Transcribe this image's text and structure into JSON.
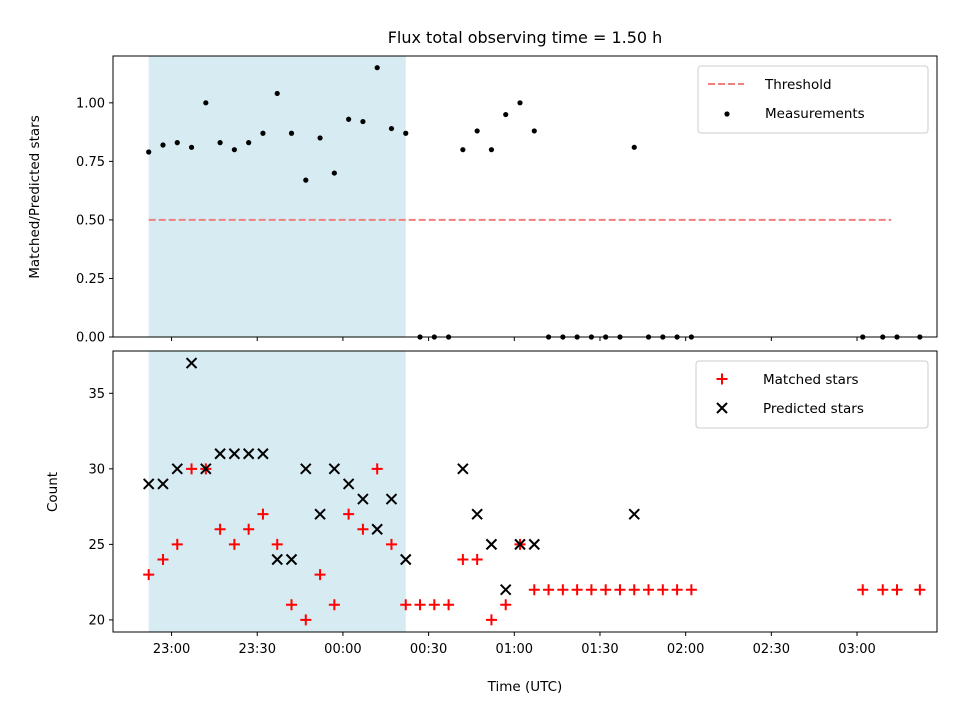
{
  "chart_data": [
    {
      "type": "scatter",
      "title": "Flux total observing time = 1.50 h",
      "xlabel": "",
      "ylabel": "Matched/Predicted stars",
      "ylim": [
        0.0,
        1.2
      ],
      "yticks": [
        0.0,
        0.25,
        0.5,
        0.75,
        1.0
      ],
      "ytick_labels": [
        "0.00",
        "0.25",
        "0.50",
        "0.75",
        "1.00"
      ],
      "shaded_region": {
        "x_start": -8,
        "x_end": 82,
        "color": "#add8e6"
      },
      "legend": {
        "placement": "top-right",
        "entries": [
          "Threshold",
          "Measurements"
        ]
      },
      "series": [
        {
          "name": "Threshold",
          "style": "dashed-line",
          "color": "#f08080",
          "x": [
            -8,
            252
          ],
          "y": [
            0.5,
            0.5
          ]
        },
        {
          "name": "Measurements",
          "style": "dot",
          "color": "#000000",
          "x": [
            -8,
            -3,
            2,
            7,
            12,
            17,
            22,
            27,
            32,
            37,
            42,
            47,
            52,
            57,
            62,
            67,
            72,
            77,
            82,
            87,
            92,
            97,
            102,
            107,
            112,
            117,
            122,
            127,
            132,
            137,
            142,
            147,
            152,
            157,
            162,
            167,
            172,
            177,
            182,
            242,
            249,
            254,
            262
          ],
          "y": [
            0.79,
            0.82,
            0.83,
            0.81,
            1.0,
            0.83,
            0.8,
            0.83,
            0.87,
            1.04,
            0.87,
            0.67,
            0.85,
            0.7,
            0.93,
            0.92,
            1.15,
            0.89,
            0.87,
            0.0,
            0.0,
            0.0,
            0.8,
            0.88,
            0.8,
            0.95,
            1.0,
            0.88,
            0.0,
            0.0,
            0.0,
            0.0,
            0.0,
            0.0,
            0.81,
            0.0,
            0.0,
            0.0,
            0.0,
            0.0,
            0.0,
            0.0,
            0.0
          ]
        }
      ]
    },
    {
      "type": "scatter",
      "title": "",
      "xlabel": "Time (UTC)",
      "ylabel": "Count",
      "ylim": [
        19.2,
        37.8
      ],
      "yticks": [
        20,
        25,
        30,
        35
      ],
      "ytick_labels": [
        "20",
        "25",
        "30",
        "35"
      ],
      "xlim": [
        -20.5,
        268
      ],
      "xticks": [
        0,
        30,
        60,
        90,
        120,
        150,
        180,
        210,
        240
      ],
      "xtick_labels": [
        "23:00",
        "23:30",
        "00:00",
        "00:30",
        "01:00",
        "01:30",
        "02:00",
        "02:30",
        "03:00"
      ],
      "shaded_region": {
        "x_start": -8,
        "x_end": 82,
        "color": "#add8e6"
      },
      "legend": {
        "placement": "top-right",
        "entries": [
          "Matched stars",
          "Predicted stars"
        ]
      },
      "series": [
        {
          "name": "Matched stars",
          "marker": "plus",
          "color": "#ff0000",
          "x": [
            -8,
            -3,
            2,
            7,
            12,
            17,
            22,
            27,
            32,
            37,
            42,
            47,
            52,
            57,
            62,
            67,
            72,
            77,
            82,
            87,
            92,
            97,
            102,
            107,
            112,
            117,
            122,
            127,
            132,
            137,
            142,
            147,
            152,
            157,
            162,
            167,
            172,
            177,
            182,
            242,
            249,
            254,
            262
          ],
          "y": [
            23,
            24,
            25,
            30,
            30,
            26,
            25,
            26,
            27,
            25,
            21,
            20,
            23,
            21,
            27,
            26,
            30,
            25,
            21,
            21,
            21,
            21,
            24,
            24,
            20,
            21,
            25,
            22,
            22,
            22,
            22,
            22,
            22,
            22,
            22,
            22,
            22,
            22,
            22,
            22,
            22,
            22,
            22
          ]
        },
        {
          "name": "Predicted stars",
          "marker": "x",
          "color": "#000000",
          "x": [
            -8,
            -3,
            2,
            7,
            12,
            17,
            22,
            27,
            32,
            37,
            42,
            47,
            52,
            57,
            62,
            67,
            72,
            77,
            82,
            102,
            107,
            112,
            117,
            122,
            127,
            162
          ],
          "y": [
            29,
            29,
            30,
            37,
            30,
            31,
            31,
            31,
            31,
            24,
            24,
            30,
            27,
            30,
            29,
            28,
            26,
            28,
            24,
            30,
            27,
            25,
            22,
            25,
            25,
            27
          ]
        }
      ]
    }
  ]
}
